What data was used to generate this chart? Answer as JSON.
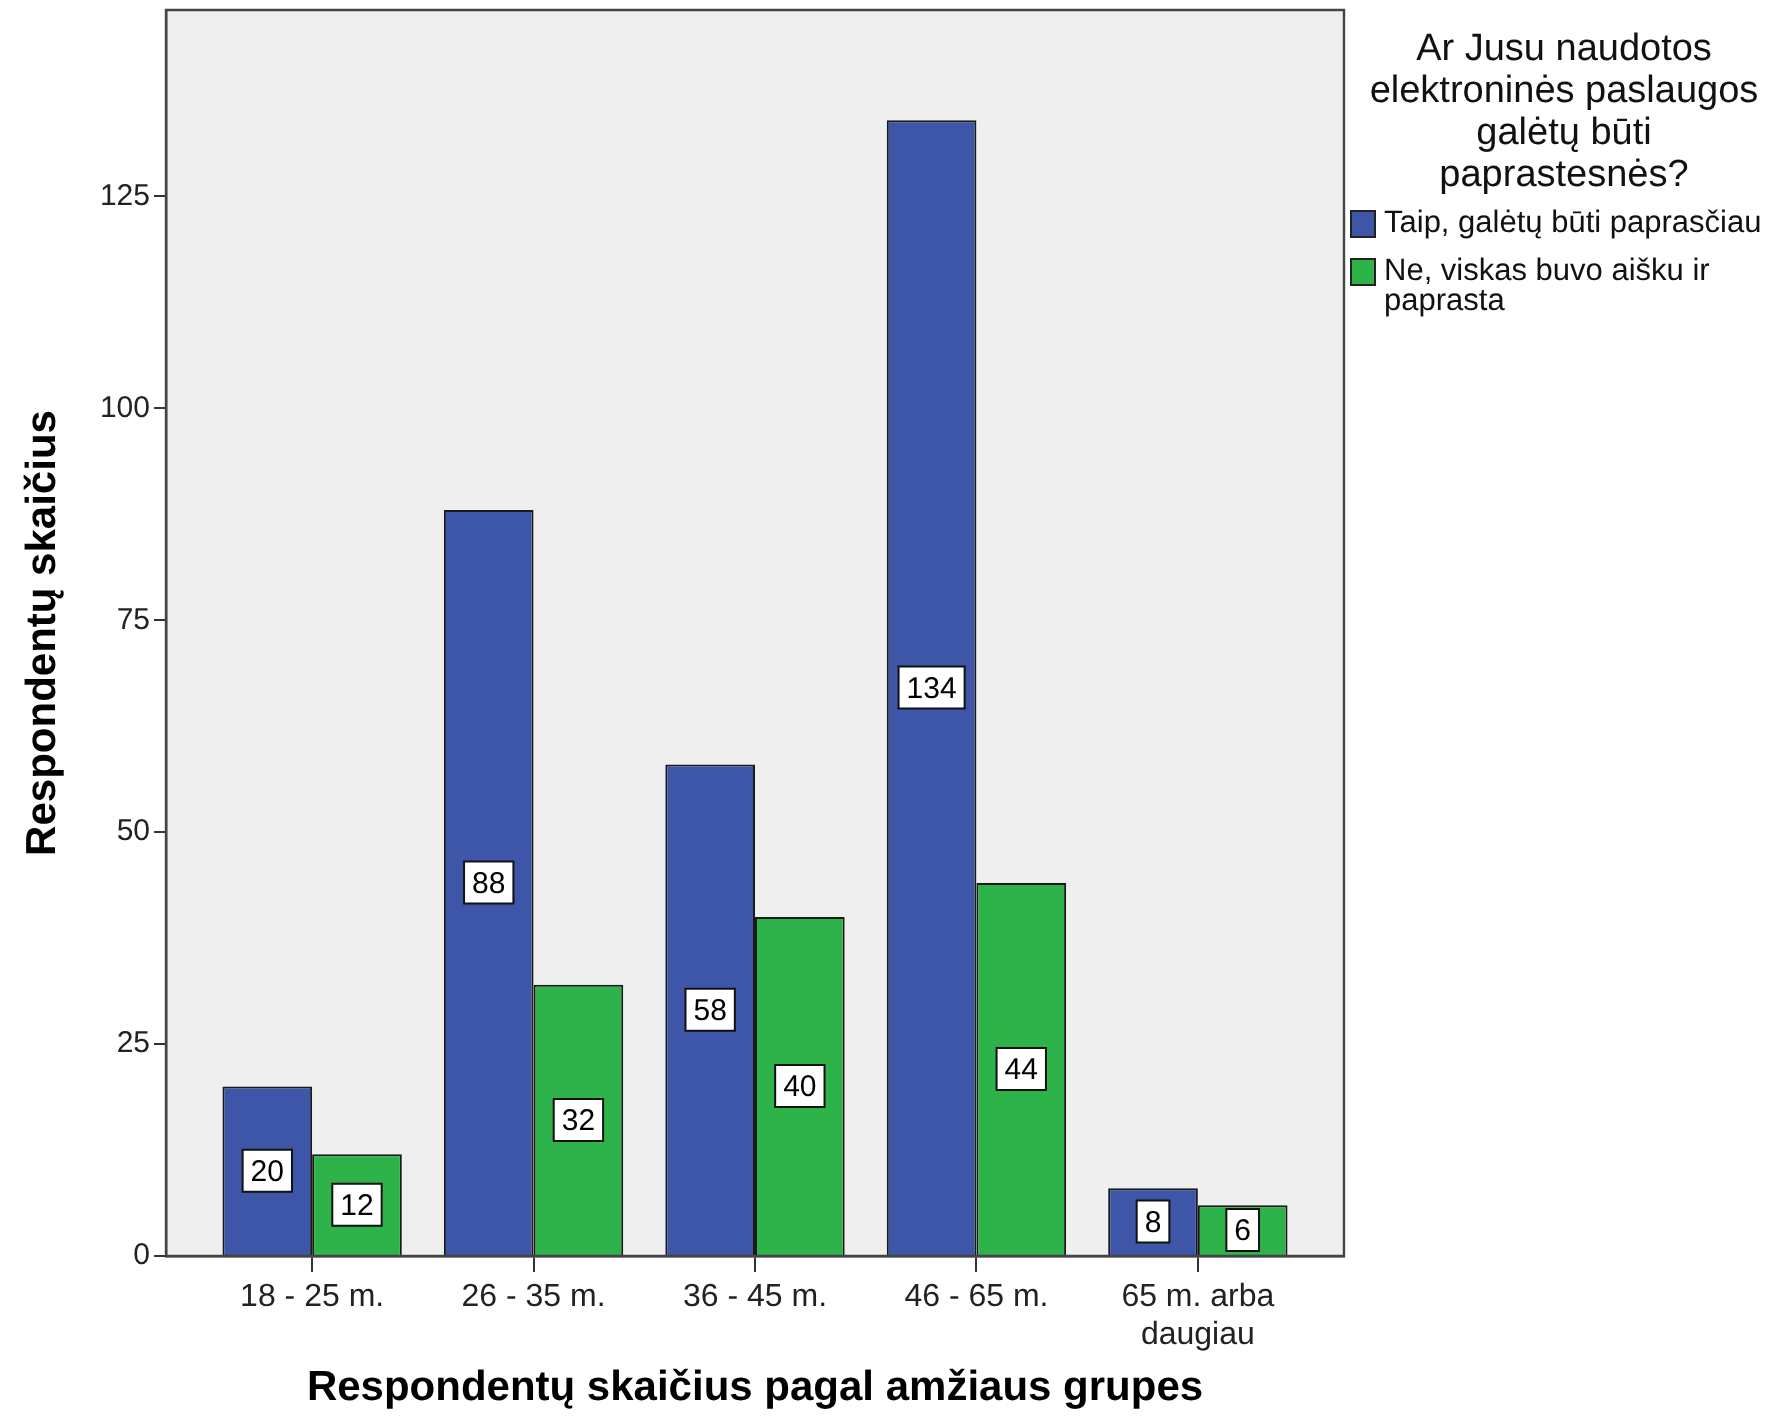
{
  "chart_data": {
    "type": "bar",
    "xlabel": "Respondentų skaičius pagal amžiaus grupes",
    "ylabel": "Respondentų skaičius",
    "legend_title": "Ar Jusu naudotos elektroninės paslaugos galėtų būti paprastesnės?",
    "categories": [
      "18 - 25 m.",
      "26 - 35 m.",
      "36 - 45 m.",
      "46 - 65 m.",
      "65 m. arba daugiau"
    ],
    "series": [
      {
        "name": "Taip, galėtų būti paprasčiau",
        "color": "#3d56a7",
        "values": [
          20,
          88,
          58,
          134,
          8
        ]
      },
      {
        "name": "Ne, viskas buvo aišku ir paprasta",
        "color": "#2eb34b",
        "values": [
          12,
          32,
          40,
          44,
          6
        ]
      }
    ],
    "ylim": [
      0,
      147
    ],
    "yticks": [
      0,
      25,
      50,
      75,
      100,
      125
    ],
    "grid": false,
    "legend": "right",
    "data_labels": true
  }
}
